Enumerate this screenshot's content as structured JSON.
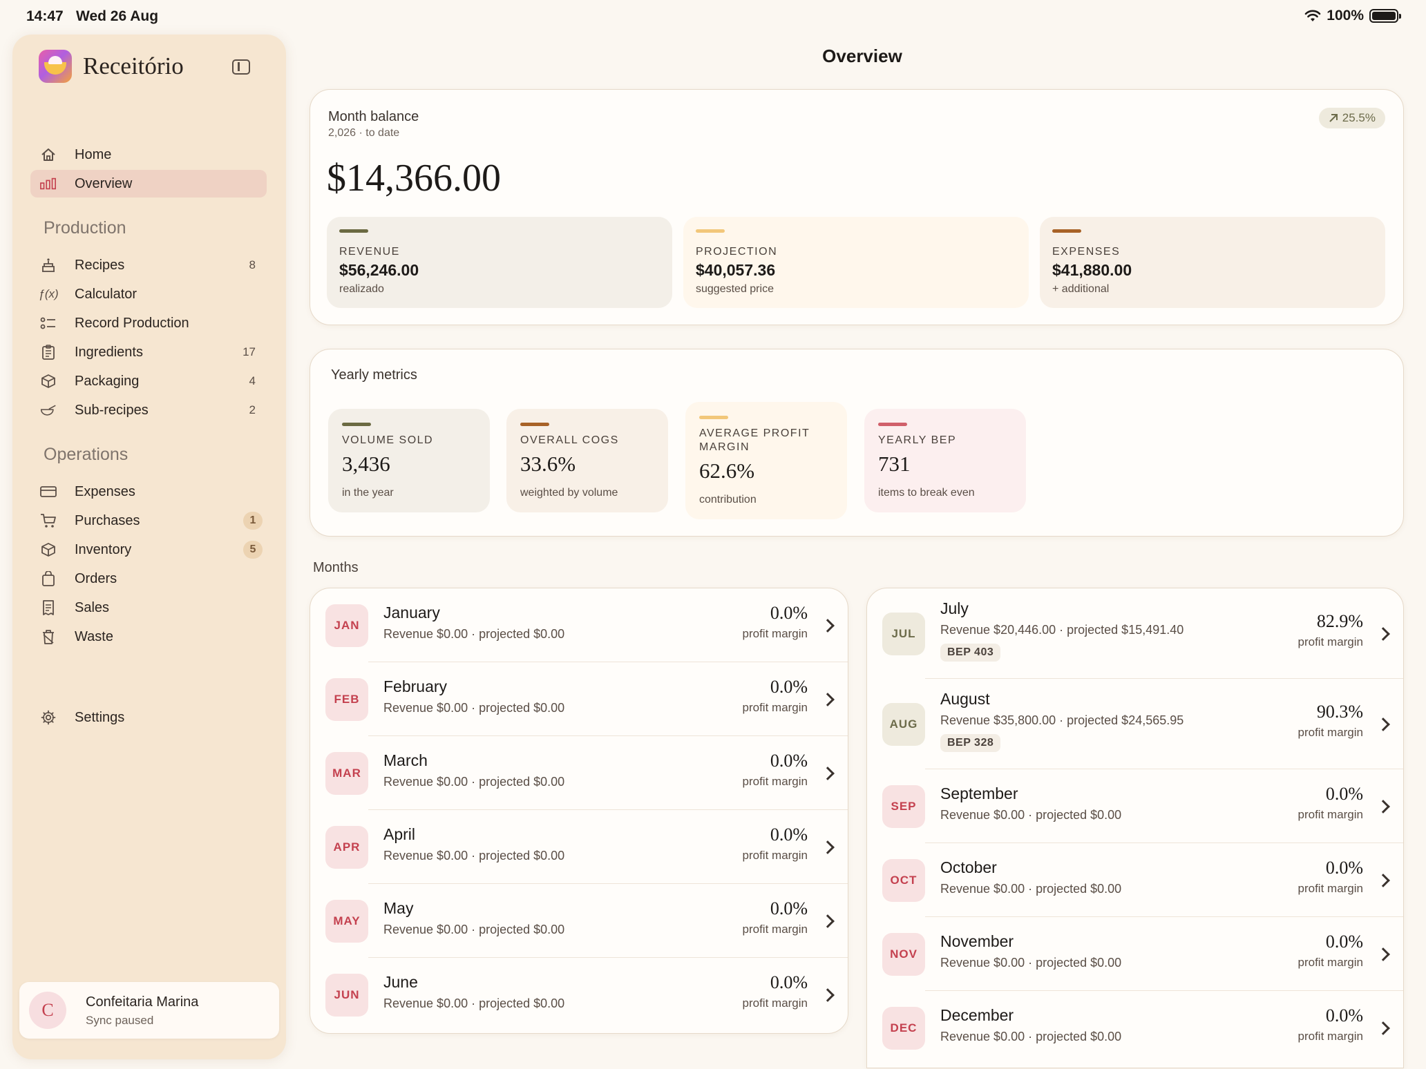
{
  "status_bar": {
    "time": "14:47",
    "date": "Wed 26 Aug",
    "battery": "100%"
  },
  "app": {
    "name": "Receitório"
  },
  "sidebar": {
    "main_items": [
      {
        "label": "Home",
        "icon": "house-icon"
      },
      {
        "label": "Overview",
        "icon": "bar-chart-icon",
        "active": true
      }
    ],
    "production_title": "Production",
    "production_items": [
      {
        "label": "Recipes",
        "count": "8",
        "icon": "cake-icon"
      },
      {
        "label": "Calculator",
        "count": "",
        "icon": "function-icon"
      },
      {
        "label": "Record Production",
        "count": "",
        "icon": "list-icon"
      },
      {
        "label": "Ingredients",
        "count": "17",
        "icon": "clipboard-icon"
      },
      {
        "label": "Packaging",
        "count": "4",
        "icon": "box-icon"
      },
      {
        "label": "Sub-recipes",
        "count": "2",
        "icon": "bowl-icon"
      }
    ],
    "operations_title": "Operations",
    "operations_items": [
      {
        "label": "Expenses",
        "badge": "",
        "icon": "credit-card-icon"
      },
      {
        "label": "Purchases",
        "badge": "1",
        "icon": "cart-icon"
      },
      {
        "label": "Inventory",
        "badge": "5",
        "icon": "box-icon"
      },
      {
        "label": "Orders",
        "badge": "",
        "icon": "bag-icon"
      },
      {
        "label": "Sales",
        "badge": "",
        "icon": "receipt-icon"
      },
      {
        "label": "Waste",
        "badge": "",
        "icon": "trash-icon"
      }
    ],
    "settings_label": "Settings",
    "profile": {
      "initial": "C",
      "name": "Confeitaria Marina",
      "status": "Sync paused"
    }
  },
  "header": {
    "title": "Overview"
  },
  "month_balance": {
    "title": "Month balance",
    "subtitle": "2,026 · to date",
    "trend": "25.5%",
    "amount": "$14,366.00",
    "stats": [
      {
        "label": "REVENUE",
        "value": "$56,246.00",
        "note": "realizado",
        "color": "#6b6a42",
        "bg": "#f3efe8"
      },
      {
        "label": "PROJECTION",
        "value": "$40,057.36",
        "note": "suggested price",
        "color": "#f2c77a",
        "bg": "#fff7ec"
      },
      {
        "label": "EXPENSES",
        "value": "$41,880.00",
        "note": "+ additional",
        "color": "#a86227",
        "bg": "#f8f0e7"
      }
    ]
  },
  "yearly_metrics": {
    "title": "Yearly metrics",
    "items": [
      {
        "label": "VOLUME SOLD",
        "value": "3,436",
        "note": "in the year",
        "color": "#6b6a42",
        "bg": "#f3efe8"
      },
      {
        "label": "OVERALL COGS",
        "value": "33.6%",
        "note": "weighted by volume",
        "color": "#a86227",
        "bg": "#f8f0e7"
      },
      {
        "label": "AVERAGE PROFIT MARGIN",
        "value": "62.6%",
        "note": "contribution",
        "color": "#f2c77a",
        "bg": "#fff7ec"
      },
      {
        "label": "YEARLY BEP",
        "value": "731",
        "note": "items to break even",
        "color": "#d0606a",
        "bg": "#fcefef"
      }
    ]
  },
  "months": {
    "title": "Months",
    "left": [
      {
        "abbr": "JAN",
        "name": "January",
        "detail": "Revenue $0.00 · projected $0.00",
        "margin": "0.0%",
        "margin_label": "profit margin"
      },
      {
        "abbr": "FEB",
        "name": "February",
        "detail": "Revenue $0.00 · projected $0.00",
        "margin": "0.0%",
        "margin_label": "profit margin"
      },
      {
        "abbr": "MAR",
        "name": "March",
        "detail": "Revenue $0.00 · projected $0.00",
        "margin": "0.0%",
        "margin_label": "profit margin"
      },
      {
        "abbr": "APR",
        "name": "April",
        "detail": "Revenue $0.00 · projected $0.00",
        "margin": "0.0%",
        "margin_label": "profit margin"
      },
      {
        "abbr": "MAY",
        "name": "May",
        "detail": "Revenue $0.00 · projected $0.00",
        "margin": "0.0%",
        "margin_label": "profit margin"
      },
      {
        "abbr": "JUN",
        "name": "June",
        "detail": "Revenue $0.00 · projected $0.00",
        "margin": "0.0%",
        "margin_label": "profit margin"
      }
    ],
    "right": [
      {
        "abbr": "JUL",
        "name": "July",
        "detail": "Revenue $20,446.00 · projected $15,491.40",
        "bep": "BEP 403",
        "margin": "82.9%",
        "margin_label": "profit margin"
      },
      {
        "abbr": "AUG",
        "name": "August",
        "detail": "Revenue $35,800.00 · projected $24,565.95",
        "bep": "BEP 328",
        "margin": "90.3%",
        "margin_label": "profit margin"
      },
      {
        "abbr": "SEP",
        "name": "September",
        "detail": "Revenue $0.00 · projected $0.00",
        "margin": "0.0%",
        "margin_label": "profit margin"
      },
      {
        "abbr": "OCT",
        "name": "October",
        "detail": "Revenue $0.00 · projected $0.00",
        "margin": "0.0%",
        "margin_label": "profit margin"
      },
      {
        "abbr": "NOV",
        "name": "November",
        "detail": "Revenue $0.00 · projected $0.00",
        "margin": "0.0%",
        "margin_label": "profit margin"
      },
      {
        "abbr": "DEC",
        "name": "December",
        "detail": "Revenue $0.00 · projected $0.00",
        "margin": "0.0%",
        "margin_label": "profit margin"
      }
    ]
  }
}
